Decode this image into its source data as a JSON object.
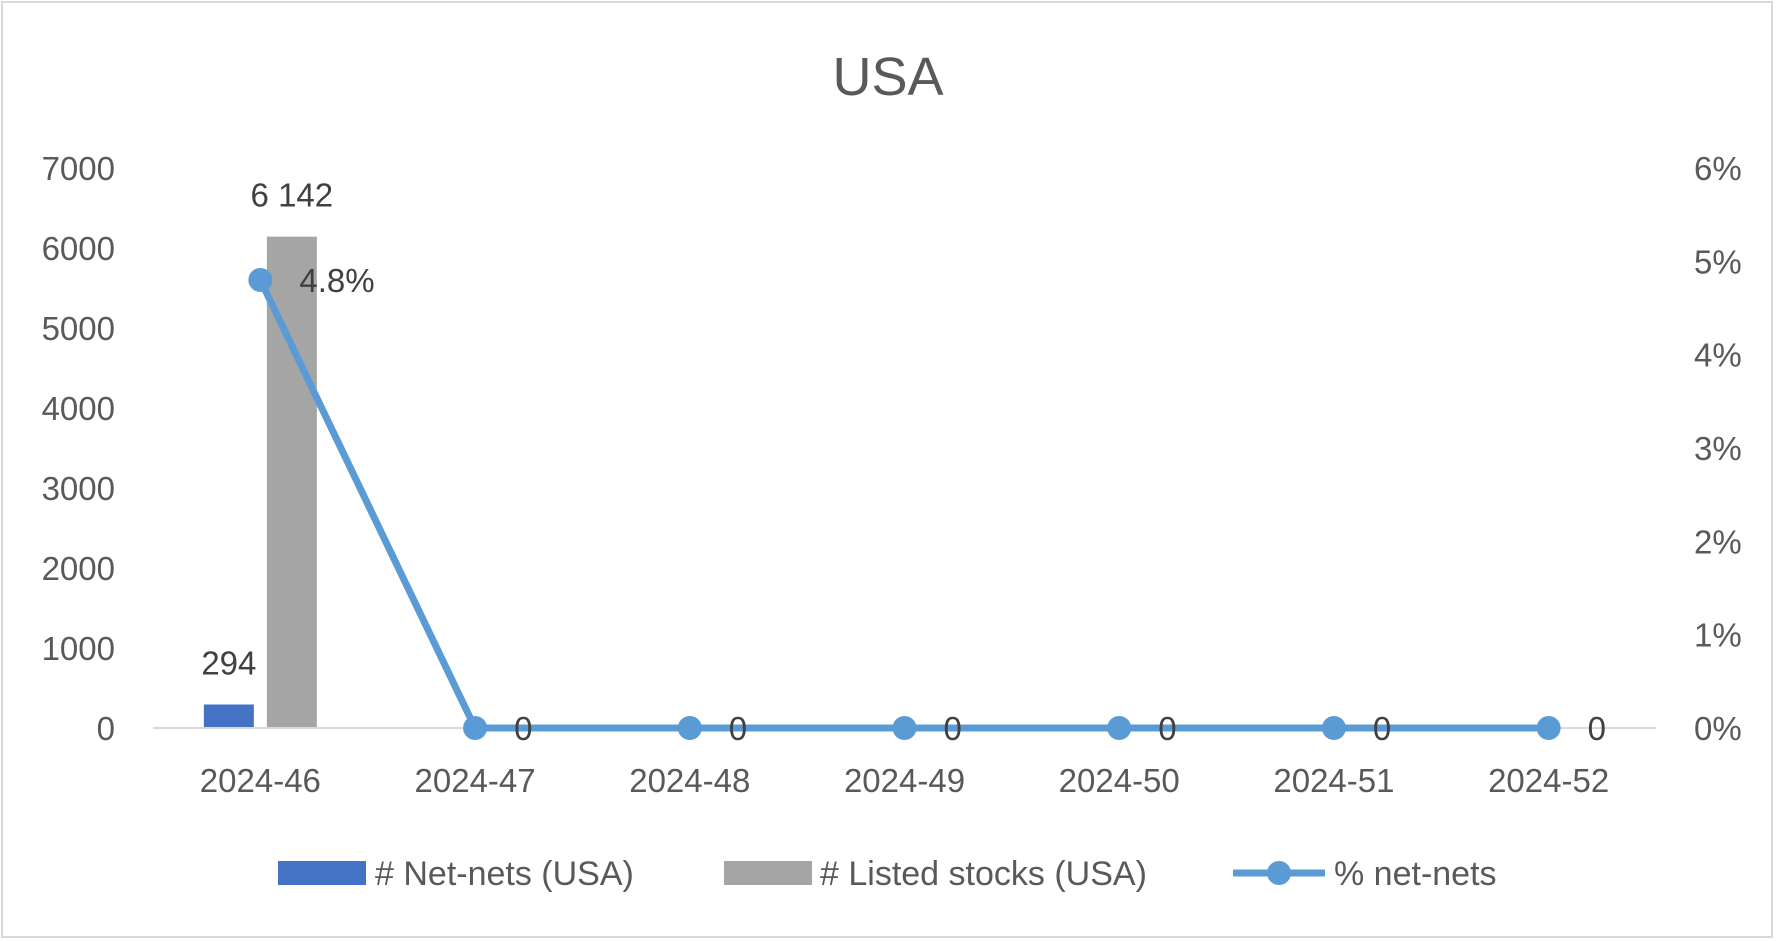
{
  "chart_data": {
    "type": "bar",
    "title": "USA",
    "categories": [
      "2024-46",
      "2024-47",
      "2024-48",
      "2024-49",
      "2024-50",
      "2024-51",
      "2024-52"
    ],
    "series": [
      {
        "name": "# Net-nets (USA)",
        "type": "bar",
        "axis": "left",
        "color": "#4472c4",
        "values": [
          294,
          0,
          0,
          0,
          0,
          0,
          0
        ],
        "labels": [
          "294",
          "",
          "",
          "",
          "",
          "",
          ""
        ]
      },
      {
        "name": "# Listed stocks (USA)",
        "type": "bar",
        "axis": "left",
        "color": "#a5a5a5",
        "values": [
          6142,
          0,
          0,
          0,
          0,
          0,
          0
        ],
        "labels": [
          "6 142",
          "",
          "",
          "",
          "",
          "",
          ""
        ]
      },
      {
        "name": "% net-nets",
        "type": "line",
        "axis": "right",
        "color": "#5b9bd5",
        "values": [
          0.048,
          0,
          0,
          0,
          0,
          0,
          0
        ],
        "labels": [
          "4.8%",
          "0",
          "0",
          "0",
          "0",
          "0",
          "0"
        ]
      }
    ],
    "y_left": {
      "ylim": [
        0,
        7000
      ],
      "ticks": [
        "0",
        "1000",
        "2000",
        "3000",
        "4000",
        "5000",
        "6000",
        "7000"
      ]
    },
    "y_right": {
      "ylim": [
        0,
        0.06
      ],
      "ticks": [
        "0%",
        "1%",
        "2%",
        "3%",
        "4%",
        "5%",
        "6%"
      ]
    },
    "grid": false,
    "legend": "bottom"
  }
}
